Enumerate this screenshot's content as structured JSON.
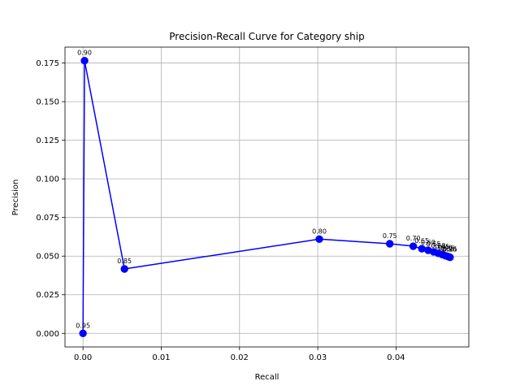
{
  "chart_data": {
    "type": "line",
    "title": "Precision-Recall Curve for Category ship",
    "xlabel": "Recall",
    "ylabel": "Precision",
    "xlim": [
      -0.0023,
      0.0493
    ],
    "ylim": [
      -0.0088,
      0.1853
    ],
    "xticks": [
      0.0,
      0.01,
      0.02,
      0.03,
      0.04
    ],
    "xtick_labels": [
      "0.00",
      "0.01",
      "0.02",
      "0.03",
      "0.04"
    ],
    "yticks": [
      0.0,
      0.025,
      0.05,
      0.075,
      0.1,
      0.125,
      0.15,
      0.175
    ],
    "ytick_labels": [
      "0.000",
      "0.025",
      "0.050",
      "0.075",
      "0.100",
      "0.125",
      "0.150",
      "0.175"
    ],
    "grid": true,
    "color": "#0000ff",
    "series": [
      {
        "x": [
          0.0,
          0.0002,
          0.0053,
          0.0302,
          0.0392,
          0.0422,
          0.0433,
          0.0441,
          0.0448,
          0.0454,
          0.0459,
          0.0463,
          0.0466,
          0.0468,
          0.0469
        ],
        "y": [
          0.0,
          0.1765,
          0.0417,
          0.061,
          0.058,
          0.0564,
          0.0548,
          0.0538,
          0.0528,
          0.0518,
          0.051,
          0.0503,
          0.0498,
          0.0494,
          0.0492
        ],
        "point_labels": [
          "0.95",
          "0.90",
          "0.85",
          "0.80",
          "0.75",
          "0.70",
          "0.65",
          "0.60",
          "0.55",
          "0.50",
          "0.45",
          "0.40",
          "0.35",
          "0.30",
          "0.25"
        ]
      }
    ]
  }
}
